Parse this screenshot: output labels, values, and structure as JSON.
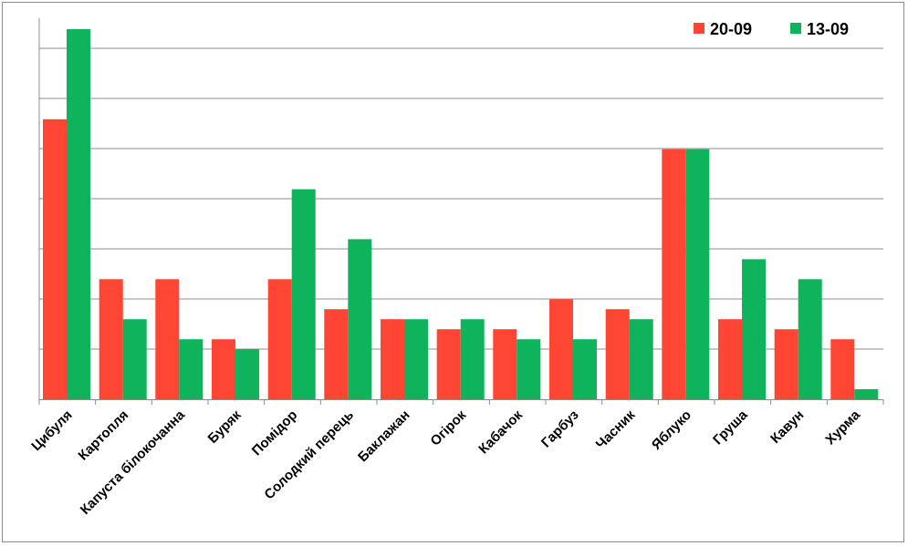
{
  "chart_data": {
    "type": "bar",
    "title": "",
    "xlabel": "",
    "ylabel": "",
    "ylim": [
      0,
      37
    ],
    "grid": true,
    "legend_position": "top-right",
    "categories": [
      "Цибуля",
      "Картопля",
      "Капуста білокочанна",
      "Буряк",
      "Помідор",
      "Солодкий перець",
      "Баклажан",
      "Огірок",
      "Кабачок",
      "Гарбуз",
      "Часник",
      "Яблуко",
      "Груша",
      "Кавун",
      "Хурма"
    ],
    "series": [
      {
        "name": "20-09",
        "color": "#ff4533",
        "values": [
          28,
          12,
          12,
          6,
          12,
          9,
          8,
          7,
          7,
          10,
          9,
          25,
          8,
          7,
          6
        ]
      },
      {
        "name": "13-09",
        "color": "#0fb35c",
        "values": [
          37,
          8,
          6,
          5,
          21,
          16,
          8,
          8,
          6,
          6,
          8,
          25,
          14,
          12,
          1
        ]
      }
    ]
  }
}
